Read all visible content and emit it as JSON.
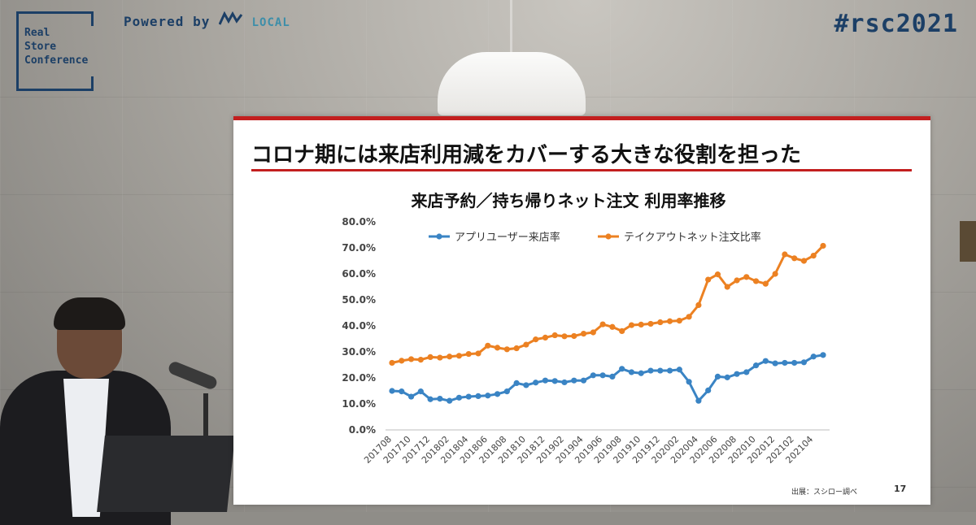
{
  "header": {
    "logo_lines": [
      "Real",
      "Store",
      "Conference"
    ],
    "powered_by": "Powered by",
    "powered_brand": "LOCAL",
    "hashtag": "#rsc2021"
  },
  "slide": {
    "title": "コロナ期には来店利用減をカバーする大きな役割を担った",
    "source": "出展：スシロー調べ",
    "page_number": "17"
  },
  "colors": {
    "accent": "#c31f1f",
    "series1": "#3a84c4",
    "series2": "#ec8122"
  },
  "chart_data": {
    "type": "line",
    "title": "来店予約／持ち帰りネット注文 利用率推移",
    "xlabel": "",
    "ylabel": "",
    "ylim": [
      0,
      80
    ],
    "yticks": [
      "0.0%",
      "10.0%",
      "20.0%",
      "30.0%",
      "40.0%",
      "50.0%",
      "60.0%",
      "70.0%",
      "80.0%"
    ],
    "legend_position": "top",
    "x": [
      "201708",
      "201709",
      "201710",
      "201711",
      "201712",
      "201801",
      "201802",
      "201803",
      "201804",
      "201805",
      "201806",
      "201807",
      "201808",
      "201809",
      "201810",
      "201811",
      "201812",
      "201901",
      "201902",
      "201903",
      "201904",
      "201905",
      "201906",
      "201907",
      "201908",
      "201909",
      "201910",
      "201911",
      "201912",
      "202001",
      "202002",
      "202003",
      "202004",
      "202005",
      "202006",
      "202007",
      "202008",
      "202009",
      "202010",
      "202011",
      "202012",
      "202101",
      "202102",
      "202103",
      "202104",
      "202105"
    ],
    "xtick_labels": [
      "201708",
      "201710",
      "201712",
      "201802",
      "201804",
      "201806",
      "201808",
      "201810",
      "201812",
      "201902",
      "201904",
      "201906",
      "201908",
      "201910",
      "201912",
      "202002",
      "202004",
      "202006",
      "202008",
      "202010",
      "202012",
      "202102",
      "202104"
    ],
    "series": [
      {
        "name": "アプリユーザー来店率",
        "values": [
          15.0,
          14.8,
          12.8,
          14.8,
          11.8,
          12.0,
          11.2,
          12.4,
          12.8,
          13.0,
          13.2,
          13.8,
          14.8,
          18.0,
          17.2,
          18.2,
          19.0,
          18.8,
          18.3,
          19.0,
          19.0,
          21.0,
          21.0,
          20.5,
          23.5,
          22.2,
          21.8,
          22.8,
          22.8,
          22.8,
          23.2,
          18.5,
          11.2,
          15.2,
          20.5,
          20.2,
          21.5,
          22.2,
          24.8,
          26.5,
          25.6,
          25.8,
          25.8,
          26.0,
          28.2,
          28.8
        ]
      },
      {
        "name": "テイクアウトネット注文比率",
        "values": [
          25.8,
          26.6,
          27.2,
          27.0,
          28.0,
          27.8,
          28.2,
          28.5,
          29.2,
          29.4,
          32.4,
          31.6,
          31.0,
          31.4,
          32.8,
          34.8,
          35.5,
          36.4,
          36.0,
          36.1,
          37.0,
          37.5,
          40.6,
          39.6,
          38.0,
          40.3,
          40.5,
          40.8,
          41.4,
          41.8,
          42.0,
          43.5,
          48.0,
          57.8,
          59.8,
          55.0,
          57.5,
          58.8,
          57.2,
          56.2,
          60.0,
          67.5,
          66.0,
          65.0,
          67.0,
          70.8
        ]
      }
    ]
  }
}
